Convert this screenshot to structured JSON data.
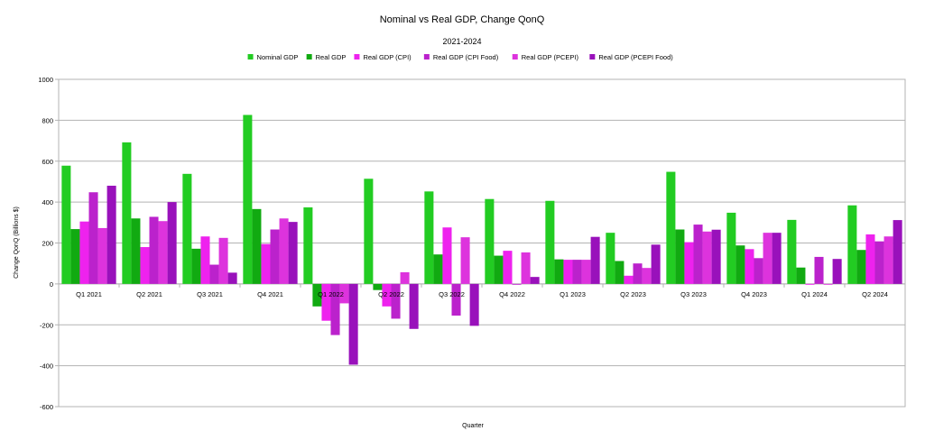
{
  "chart_data": {
    "type": "bar",
    "title": "Nominal vs Real GDP, Change QonQ",
    "subtitle": "2021-2024",
    "xlabel": "Quarter",
    "ylabel": "Change QonQ (Billions $)",
    "ylim": [
      -600,
      1000
    ],
    "yticks": [
      -600,
      -400,
      -200,
      0,
      200,
      400,
      600,
      800,
      1000
    ],
    "grid": true,
    "legend_position": "top",
    "categories": [
      "Q1 2021",
      "Q2 2021",
      "Q3 2021",
      "Q4 2021",
      "Q1 2022",
      "Q2 2022",
      "Q3 2022",
      "Q4 2022",
      "Q1 2023",
      "Q2 2023",
      "Q3 2023",
      "Q4 2023",
      "Q1 2024",
      "Q2 2024"
    ],
    "series": [
      {
        "name": "Nominal GDP",
        "color": "#22cc22",
        "values": [
          578,
          692,
          538,
          826,
          374,
          514,
          452,
          415,
          406,
          250,
          548,
          348,
          313,
          384
        ]
      },
      {
        "name": "Real GDP",
        "color": "#11aa11",
        "values": [
          268,
          320,
          172,
          366,
          -110,
          -30,
          144,
          138,
          120,
          112,
          266,
          188,
          80,
          166
        ]
      },
      {
        "name": "Real GDP (CPI)",
        "color": "#ee22ee",
        "values": [
          305,
          180,
          232,
          195,
          -180,
          -110,
          276,
          162,
          118,
          40,
          204,
          170,
          -4,
          242
        ]
      },
      {
        "name": "Real GDP (CPI Food)",
        "color": "#bb22cc",
        "values": [
          448,
          328,
          94,
          266,
          -250,
          -170,
          -155,
          -4,
          118,
          100,
          290,
          126,
          132,
          208
        ]
      },
      {
        "name": "Real GDP (PCEPI)",
        "color": "#dd33dd",
        "values": [
          273,
          307,
          225,
          320,
          -95,
          57,
          228,
          154,
          118,
          78,
          256,
          250,
          -4,
          232
        ]
      },
      {
        "name": "Real GDP (PCEPI Food)",
        "color": "#9911bb",
        "values": [
          480,
          400,
          55,
          303,
          -395,
          -220,
          -205,
          34,
          230,
          192,
          265,
          250,
          122,
          312
        ]
      }
    ]
  }
}
